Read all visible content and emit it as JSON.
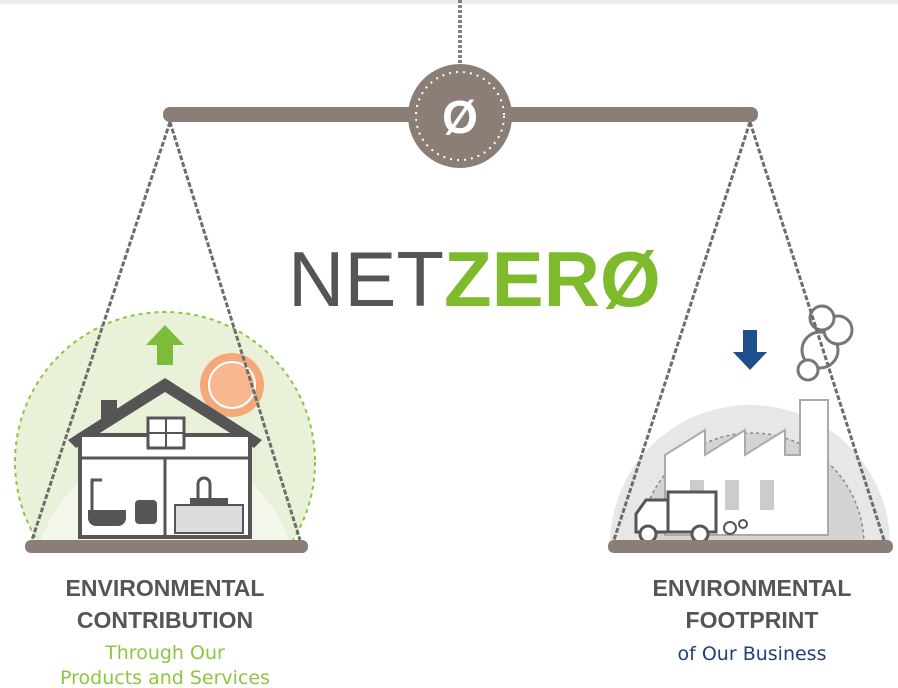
{
  "center": {
    "symbol": "Ø"
  },
  "logo": {
    "net": "NET",
    "zero": "ZERØ"
  },
  "left_pan": {
    "title_lines": [
      "ENVIRONMENTAL",
      "CONTRIBUTION"
    ],
    "subtitle_lines": [
      "Through Our",
      "Products and Services"
    ]
  },
  "right_pan": {
    "title_lines": [
      "ENVIRONMENTAL",
      "FOOTPRINT"
    ],
    "subtitle_lines": [
      "of Our Business"
    ]
  }
}
